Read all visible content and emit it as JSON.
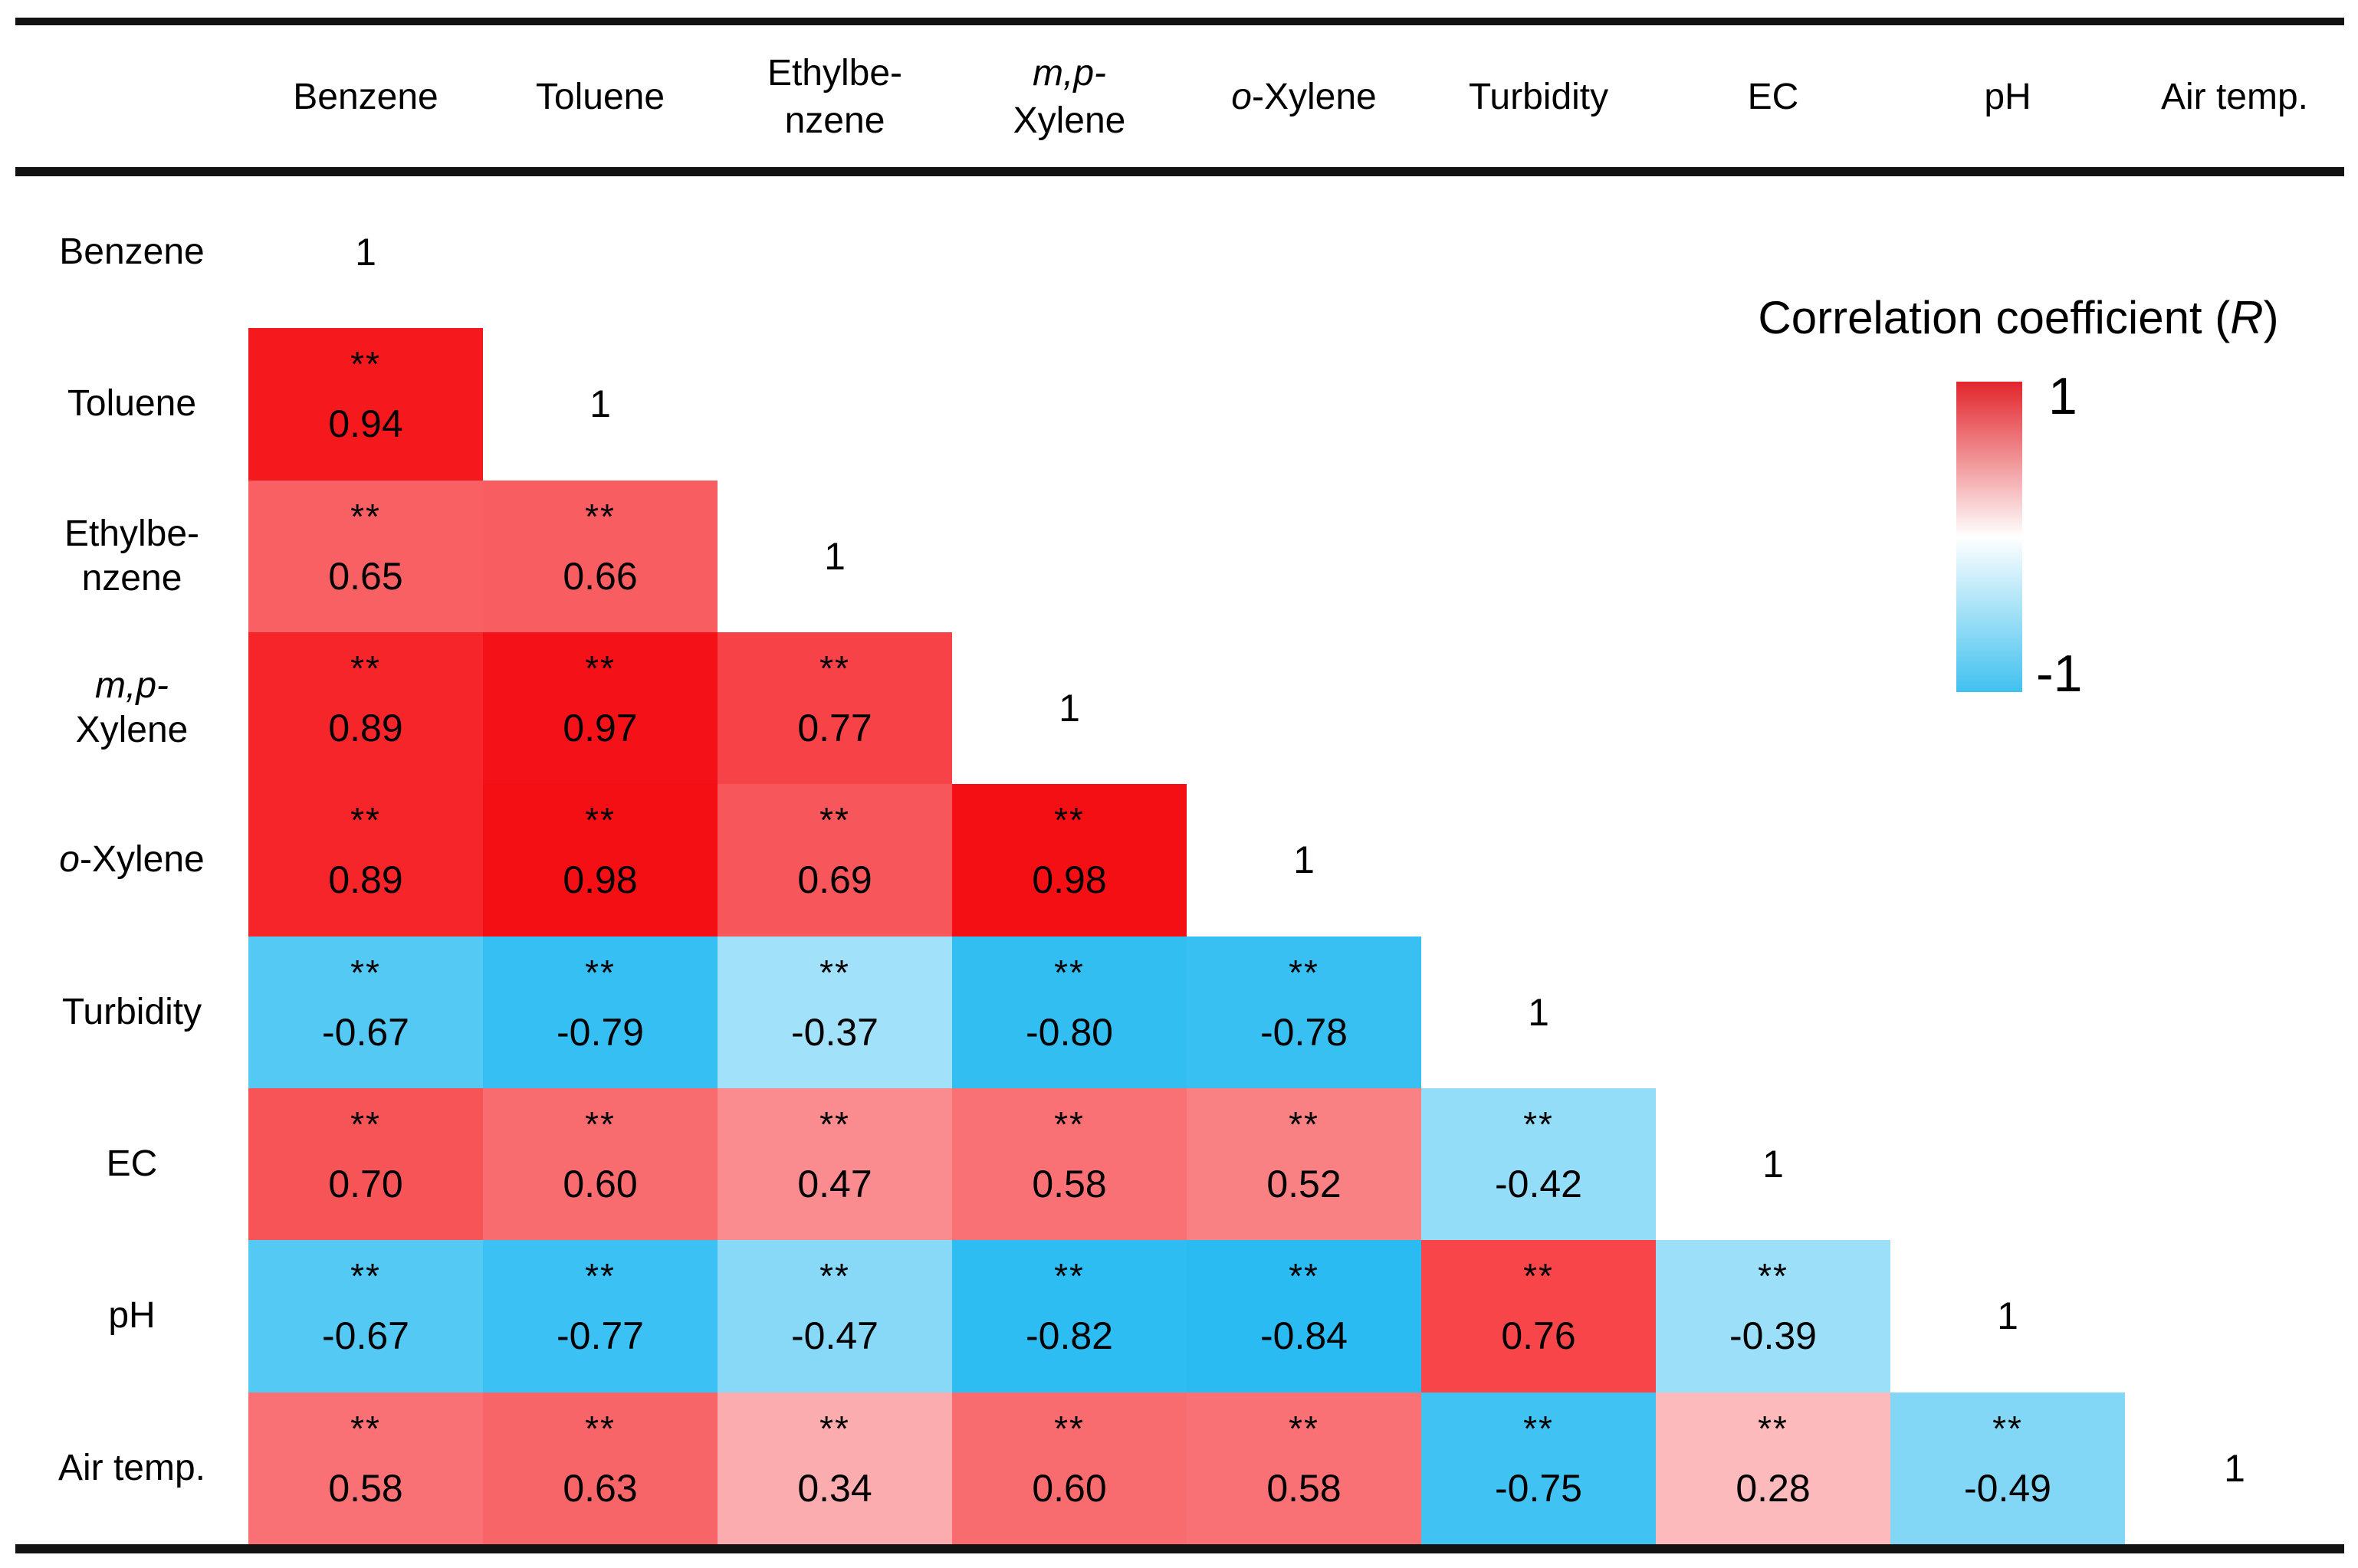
{
  "chart_data": {
    "type": "heatmap",
    "description": "Lower-triangular correlation matrix with significance markers",
    "variables": [
      "Benzene",
      "Toluene",
      "Ethylbenzene",
      "m,p-Xylene",
      "o-Xylene",
      "Turbidity",
      "EC",
      "pH",
      "Air temp."
    ],
    "matrix_lower_triangle": [
      [
        1
      ],
      [
        0.94,
        1
      ],
      [
        0.65,
        0.66,
        1
      ],
      [
        0.89,
        0.97,
        0.77,
        1
      ],
      [
        0.89,
        0.98,
        0.69,
        0.98,
        1
      ],
      [
        -0.67,
        -0.79,
        -0.37,
        -0.8,
        -0.78,
        1
      ],
      [
        0.7,
        0.6,
        0.47,
        0.58,
        0.52,
        -0.42,
        1
      ],
      [
        -0.67,
        -0.77,
        -0.47,
        -0.82,
        -0.84,
        0.76,
        -0.39,
        1
      ],
      [
        0.58,
        0.63,
        0.34,
        0.6,
        0.58,
        -0.75,
        0.28,
        -0.49,
        1
      ]
    ],
    "significance_marker": "**",
    "significance_note": "** shown above every off-diagonal coefficient",
    "colormap": {
      "positive": "#f40a10",
      "negative": "#00aeef",
      "zero": "#ffffff"
    },
    "legend": {
      "title": "Correlation coefficient (R)",
      "max_label": "1",
      "min_label": "-1",
      "bar_top_color": "#e2262c",
      "bar_mid_color": "#ffffff",
      "bar_bottom_color": "#41c1ef"
    }
  },
  "table": {
    "column_headers": [
      {
        "id": "benzene",
        "lines": [
          [
            {
              "t": "Benzene"
            }
          ]
        ]
      },
      {
        "id": "toluene",
        "lines": [
          [
            {
              "t": "Toluene"
            }
          ]
        ]
      },
      {
        "id": "ethylbenzene",
        "lines": [
          [
            {
              "t": "Ethylbe-"
            }
          ],
          [
            {
              "t": "nzene"
            }
          ]
        ]
      },
      {
        "id": "mp-xylene",
        "lines": [
          [
            {
              "t": "m,p-",
              "i": true
            }
          ],
          [
            {
              "t": "Xylene"
            }
          ]
        ]
      },
      {
        "id": "o-xylene",
        "lines": [
          [
            {
              "t": "o",
              "i": true
            },
            {
              "t": "-Xylene"
            }
          ]
        ]
      },
      {
        "id": "turbidity",
        "lines": [
          [
            {
              "t": "Turbidity"
            }
          ]
        ]
      },
      {
        "id": "ec",
        "lines": [
          [
            {
              "t": "EC"
            }
          ]
        ]
      },
      {
        "id": "ph",
        "lines": [
          [
            {
              "t": "pH"
            }
          ]
        ]
      },
      {
        "id": "air-temp",
        "lines": [
          [
            {
              "t": "Air temp."
            }
          ]
        ]
      }
    ],
    "rows": [
      {
        "id": "benzene",
        "label_lines": [
          [
            {
              "t": "Benzene"
            }
          ]
        ],
        "cells": [],
        "diagonal": "1"
      },
      {
        "id": "toluene",
        "label_lines": [
          [
            {
              "t": "Toluene"
            }
          ]
        ],
        "cells": [
          {
            "value": 0.94,
            "text": "0.94",
            "sig": "**"
          }
        ],
        "diagonal": "1"
      },
      {
        "id": "ethylbenzene",
        "label_lines": [
          [
            {
              "t": "Ethylbe-"
            }
          ],
          [
            {
              "t": "nzene"
            }
          ]
        ],
        "cells": [
          {
            "value": 0.65,
            "text": "0.65",
            "sig": "**"
          },
          {
            "value": 0.66,
            "text": "0.66",
            "sig": "**"
          }
        ],
        "diagonal": "1"
      },
      {
        "id": "mp-xylene",
        "label_lines": [
          [
            {
              "t": "m,p-",
              "i": true
            }
          ],
          [
            {
              "t": "Xylene"
            }
          ]
        ],
        "cells": [
          {
            "value": 0.89,
            "text": "0.89",
            "sig": "**"
          },
          {
            "value": 0.97,
            "text": "0.97",
            "sig": "**"
          },
          {
            "value": 0.77,
            "text": "0.77",
            "sig": "**"
          }
        ],
        "diagonal": "1"
      },
      {
        "id": "o-xylene",
        "label_lines": [
          [
            {
              "t": "o",
              "i": true
            },
            {
              "t": "-Xylene"
            }
          ]
        ],
        "cells": [
          {
            "value": 0.89,
            "text": "0.89",
            "sig": "**"
          },
          {
            "value": 0.98,
            "text": "0.98",
            "sig": "**"
          },
          {
            "value": 0.69,
            "text": "0.69",
            "sig": "**"
          },
          {
            "value": 0.98,
            "text": "0.98",
            "sig": "**"
          }
        ],
        "diagonal": "1"
      },
      {
        "id": "turbidity",
        "label_lines": [
          [
            {
              "t": "Turbidity"
            }
          ]
        ],
        "cells": [
          {
            "value": -0.67,
            "text": "-0.67",
            "sig": "**"
          },
          {
            "value": -0.79,
            "text": "-0.79",
            "sig": "**"
          },
          {
            "value": -0.37,
            "text": "-0.37",
            "sig": "**"
          },
          {
            "value": -0.8,
            "text": "-0.80",
            "sig": "**"
          },
          {
            "value": -0.78,
            "text": "-0.78",
            "sig": "**"
          }
        ],
        "diagonal": "1"
      },
      {
        "id": "ec",
        "label_lines": [
          [
            {
              "t": "EC"
            }
          ]
        ],
        "cells": [
          {
            "value": 0.7,
            "text": "0.70",
            "sig": "**"
          },
          {
            "value": 0.6,
            "text": "0.60",
            "sig": "**"
          },
          {
            "value": 0.47,
            "text": "0.47",
            "sig": "**"
          },
          {
            "value": 0.58,
            "text": "0.58",
            "sig": "**"
          },
          {
            "value": 0.52,
            "text": "0.52",
            "sig": "**"
          },
          {
            "value": -0.42,
            "text": "-0.42",
            "sig": "**"
          }
        ],
        "diagonal": "1"
      },
      {
        "id": "ph",
        "label_lines": [
          [
            {
              "t": "pH"
            }
          ]
        ],
        "cells": [
          {
            "value": -0.67,
            "text": "-0.67",
            "sig": "**"
          },
          {
            "value": -0.77,
            "text": "-0.77",
            "sig": "**"
          },
          {
            "value": -0.47,
            "text": "-0.47",
            "sig": "**"
          },
          {
            "value": -0.82,
            "text": "-0.82",
            "sig": "**"
          },
          {
            "value": -0.84,
            "text": "-0.84",
            "sig": "**"
          },
          {
            "value": 0.76,
            "text": "0.76",
            "sig": "**"
          },
          {
            "value": -0.39,
            "text": "-0.39",
            "sig": "**"
          }
        ],
        "diagonal": "1"
      },
      {
        "id": "air-temp",
        "label_lines": [
          [
            {
              "t": "Air temp."
            }
          ]
        ],
        "cells": [
          {
            "value": 0.58,
            "text": "0.58",
            "sig": "**"
          },
          {
            "value": 0.63,
            "text": "0.63",
            "sig": "**"
          },
          {
            "value": 0.34,
            "text": "0.34",
            "sig": "**"
          },
          {
            "value": 0.6,
            "text": "0.60",
            "sig": "**"
          },
          {
            "value": 0.58,
            "text": "0.58",
            "sig": "**"
          },
          {
            "value": -0.75,
            "text": "-0.75",
            "sig": "**"
          },
          {
            "value": 0.28,
            "text": "0.28",
            "sig": "**"
          },
          {
            "value": -0.49,
            "text": "-0.49",
            "sig": "**"
          }
        ],
        "diagonal": "1"
      }
    ]
  },
  "legend": {
    "title_segments": [
      {
        "t": "Correlation coefficient ("
      },
      {
        "t": "R",
        "i": true
      },
      {
        "t": ")"
      }
    ],
    "max_label": "1",
    "min_label": "-1"
  }
}
